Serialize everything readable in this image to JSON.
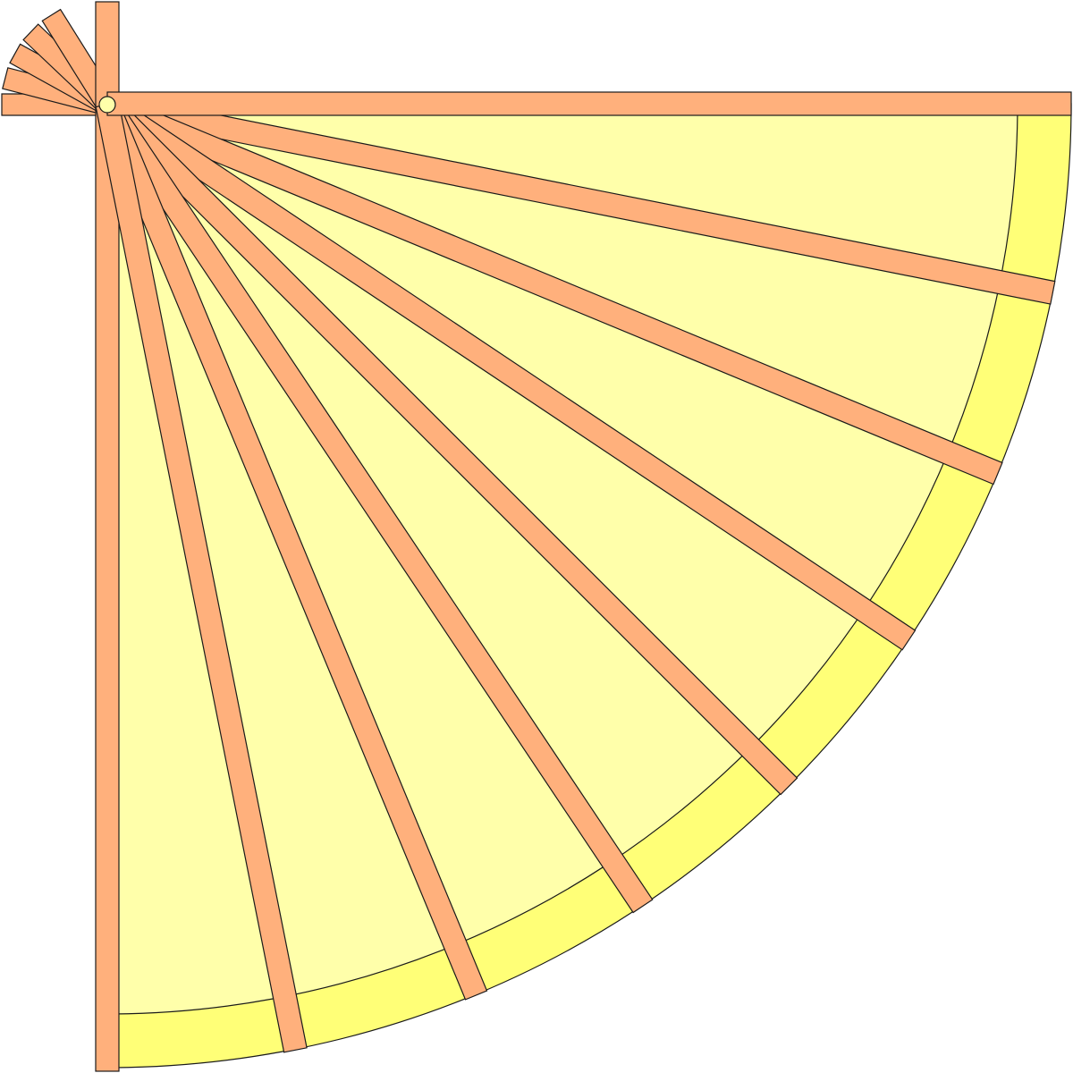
{
  "illustration": {
    "subject": "folding-hand-fan-icon",
    "colors": {
      "background": "#ffffff",
      "paper_inner": "#ffffaa",
      "paper_border": "#ffff77",
      "ribs": "#ffb07c",
      "pivot": "#ffffaa",
      "outline": "#1a1a1a"
    },
    "spread_rib_count": 7,
    "folded_rib_count": 5
  }
}
